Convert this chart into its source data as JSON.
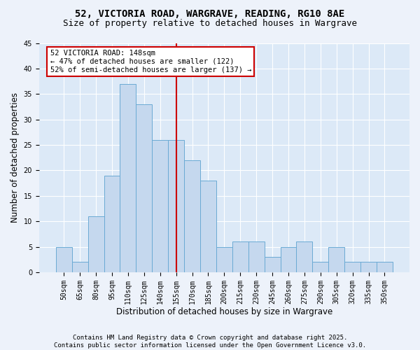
{
  "title1": "52, VICTORIA ROAD, WARGRAVE, READING, RG10 8AE",
  "title2": "Size of property relative to detached houses in Wargrave",
  "xlabel": "Distribution of detached houses by size in Wargrave",
  "ylabel": "Number of detached properties",
  "categories": [
    "50sqm",
    "65sqm",
    "80sqm",
    "95sqm",
    "110sqm",
    "125sqm",
    "140sqm",
    "155sqm",
    "170sqm",
    "185sqm",
    "200sqm",
    "215sqm",
    "230sqm",
    "245sqm",
    "260sqm",
    "275sqm",
    "290sqm",
    "305sqm",
    "320sqm",
    "335sqm",
    "350sqm"
  ],
  "values": [
    5,
    2,
    11,
    19,
    37,
    33,
    26,
    26,
    22,
    18,
    5,
    6,
    6,
    3,
    5,
    6,
    2,
    5,
    2,
    2,
    2
  ],
  "bar_color": "#c5d8ee",
  "bar_edge_color": "#6aaad4",
  "vline_x": 7.0,
  "vline_color": "#cc0000",
  "annotation_text": "52 VICTORIA ROAD: 148sqm\n← 47% of detached houses are smaller (122)\n52% of semi-detached houses are larger (137) →",
  "annotation_box_color": "#ffffff",
  "annotation_box_edge": "#cc0000",
  "ylim": [
    0,
    45
  ],
  "yticks": [
    0,
    5,
    10,
    15,
    20,
    25,
    30,
    35,
    40,
    45
  ],
  "footer": "Contains HM Land Registry data © Crown copyright and database right 2025.\nContains public sector information licensed under the Open Government Licence v3.0.",
  "background_color": "#edf2fa",
  "plot_bg_color": "#dce9f7",
  "grid_color": "#ffffff",
  "title_fontsize": 10,
  "subtitle_fontsize": 9,
  "axis_label_fontsize": 8.5,
  "tick_fontsize": 7,
  "annotation_fontsize": 7.5,
  "footer_fontsize": 6.5
}
